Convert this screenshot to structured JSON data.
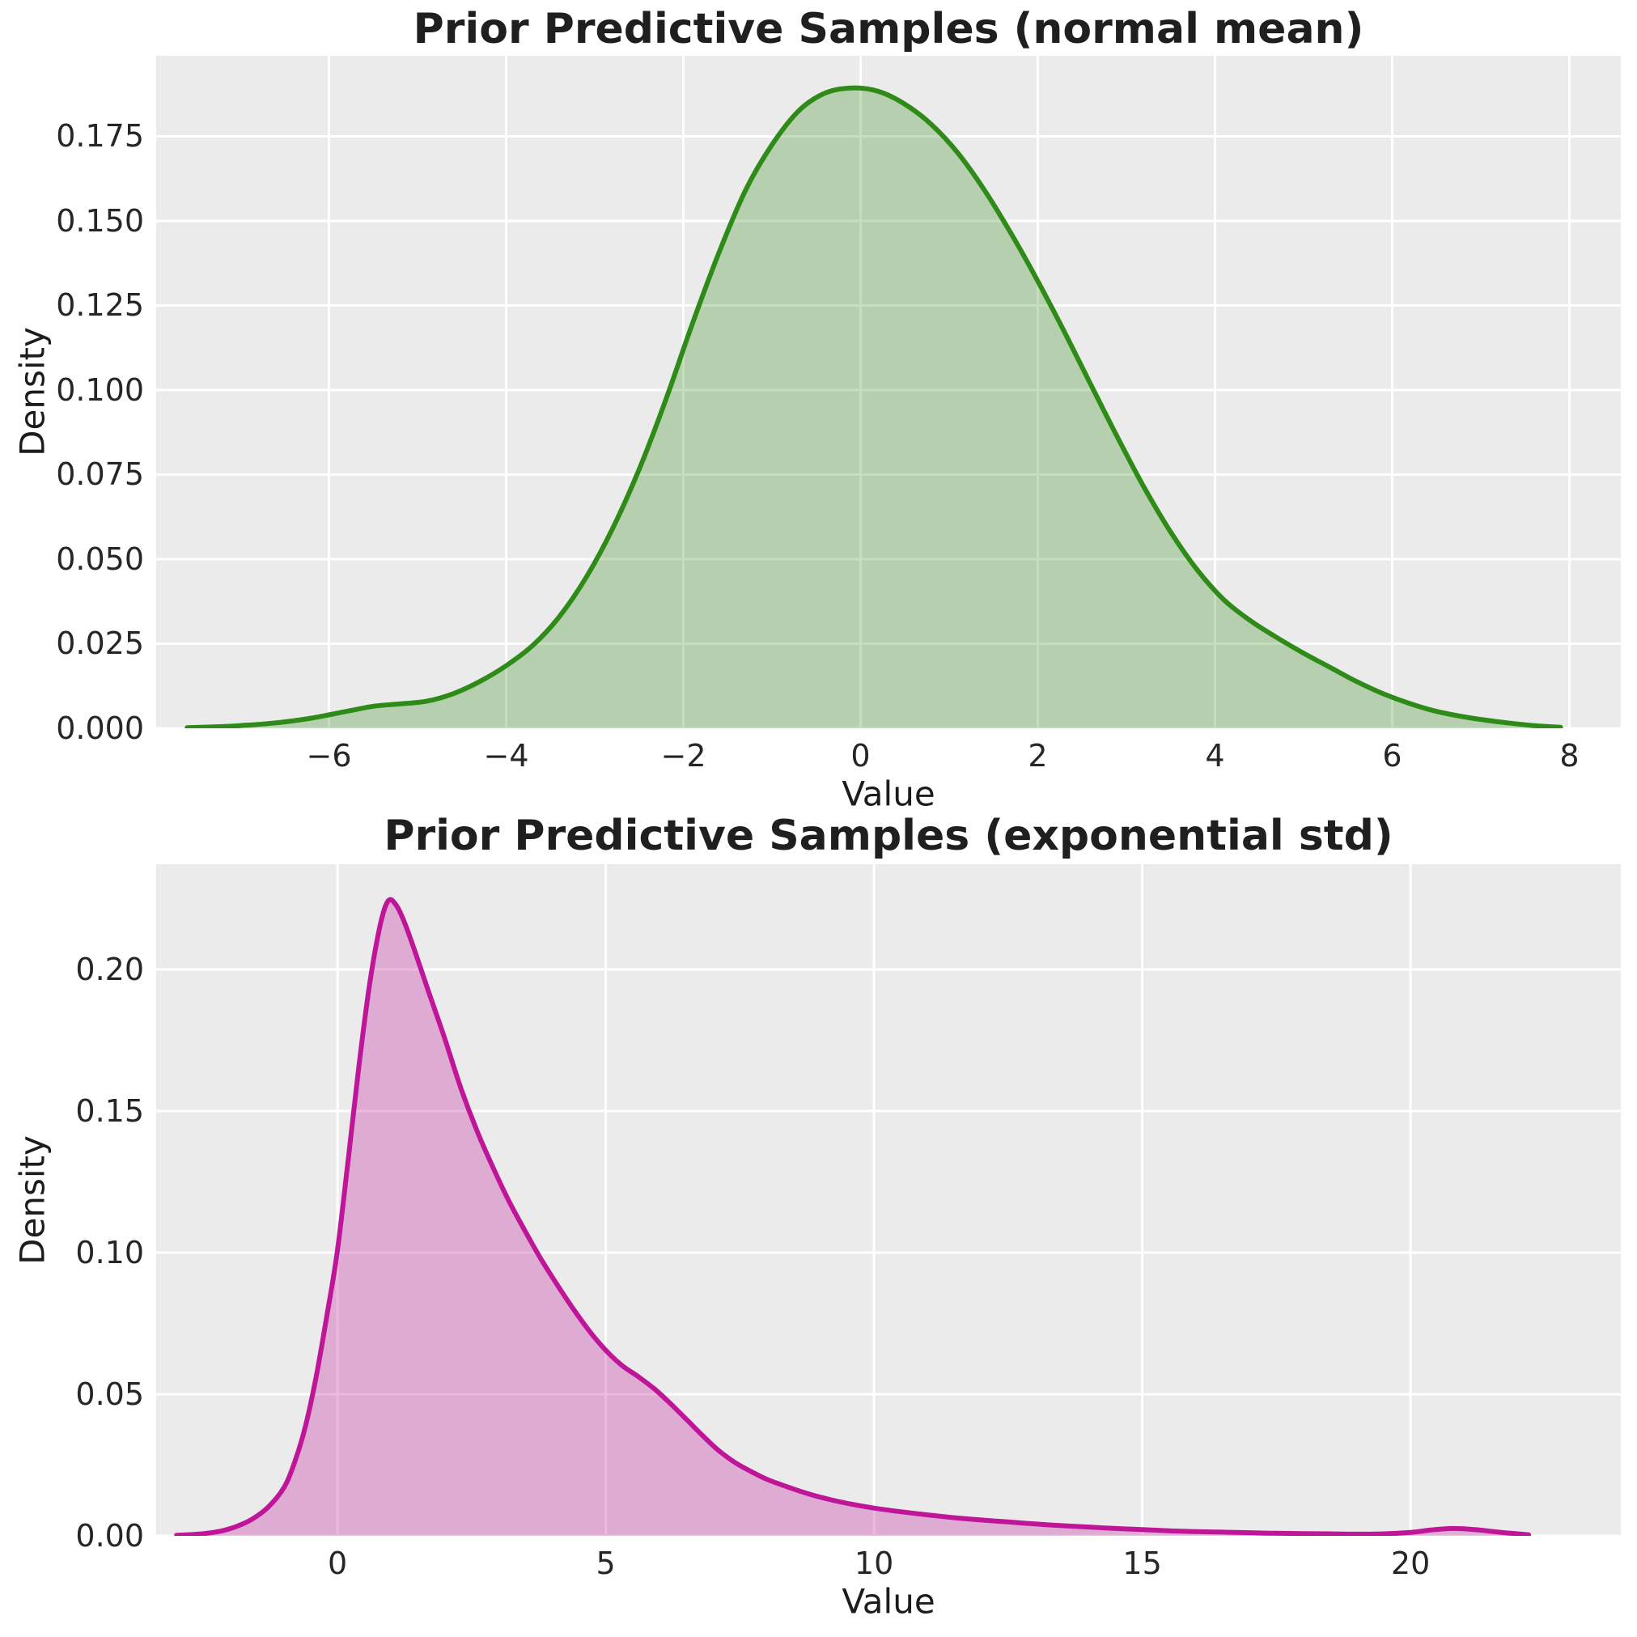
{
  "figure": {
    "background": "#ffffff",
    "axes_background": "#ebebeb",
    "grid_color": "#ffffff"
  },
  "chart_data": [
    {
      "type": "area",
      "title": "Prior Predictive Samples (normal mean)",
      "xlabel": "Value",
      "ylabel": "Density",
      "line_color": "#2e8b17",
      "fill_color": "rgba(46,139,23,0.28)",
      "xlim": [
        -7.95,
        8.58
      ],
      "ylim": [
        0,
        0.1988
      ],
      "grid": true,
      "xticks": [
        {
          "v": -6,
          "label": "−6"
        },
        {
          "v": -4,
          "label": "−4"
        },
        {
          "v": -2,
          "label": "−2"
        },
        {
          "v": 0,
          "label": "0"
        },
        {
          "v": 2,
          "label": "2"
        },
        {
          "v": 4,
          "label": "4"
        },
        {
          "v": 6,
          "label": "6"
        },
        {
          "v": 8,
          "label": "8"
        }
      ],
      "yticks": [
        {
          "v": 0.0,
          "label": "0.000"
        },
        {
          "v": 0.025,
          "label": "0.025"
        },
        {
          "v": 0.05,
          "label": "0.050"
        },
        {
          "v": 0.075,
          "label": "0.075"
        },
        {
          "v": 0.1,
          "label": "0.100"
        },
        {
          "v": 0.125,
          "label": "0.125"
        },
        {
          "v": 0.15,
          "label": "0.150"
        },
        {
          "v": 0.175,
          "label": "0.175"
        }
      ],
      "points": [
        [
          -7.6,
          0.0002
        ],
        [
          -7.3,
          0.0004
        ],
        [
          -7.0,
          0.0008
        ],
        [
          -6.6,
          0.0016
        ],
        [
          -6.2,
          0.003
        ],
        [
          -5.8,
          0.005
        ],
        [
          -5.5,
          0.0065
        ],
        [
          -5.2,
          0.0072
        ],
        [
          -4.9,
          0.008
        ],
        [
          -4.6,
          0.0102
        ],
        [
          -4.3,
          0.0138
        ],
        [
          -4.0,
          0.0185
        ],
        [
          -3.7,
          0.0245
        ],
        [
          -3.4,
          0.033
        ],
        [
          -3.1,
          0.0445
        ],
        [
          -2.8,
          0.059
        ],
        [
          -2.5,
          0.0765
        ],
        [
          -2.2,
          0.097
        ],
        [
          -1.9,
          0.1195
        ],
        [
          -1.6,
          0.1405
        ],
        [
          -1.3,
          0.159
        ],
        [
          -1.0,
          0.1725
        ],
        [
          -0.7,
          0.1825
        ],
        [
          -0.4,
          0.1878
        ],
        [
          -0.1,
          0.1893
        ],
        [
          0.2,
          0.1883
        ],
        [
          0.5,
          0.1845
        ],
        [
          0.8,
          0.1785
        ],
        [
          1.1,
          0.17
        ],
        [
          1.4,
          0.159
        ],
        [
          1.7,
          0.1462
        ],
        [
          2.0,
          0.1322
        ],
        [
          2.3,
          0.1172
        ],
        [
          2.6,
          0.1015
        ],
        [
          2.9,
          0.086
        ],
        [
          3.2,
          0.0712
        ],
        [
          3.5,
          0.058
        ],
        [
          3.8,
          0.0468
        ],
        [
          4.1,
          0.038
        ],
        [
          4.4,
          0.0318
        ],
        [
          4.7,
          0.0268
        ],
        [
          5.0,
          0.0222
        ],
        [
          5.3,
          0.018
        ],
        [
          5.6,
          0.0138
        ],
        [
          5.9,
          0.0102
        ],
        [
          6.2,
          0.0073
        ],
        [
          6.5,
          0.005
        ],
        [
          6.9,
          0.003
        ],
        [
          7.3,
          0.0016
        ],
        [
          7.6,
          0.0008
        ],
        [
          7.9,
          0.0003
        ]
      ]
    },
    {
      "type": "area",
      "title": "Prior Predictive Samples (exponential std)",
      "xlabel": "Value",
      "ylabel": "Density",
      "line_color": "#bf1699",
      "fill_color": "rgba(191,22,153,0.30)",
      "xlim": [
        -3.38,
        23.92
      ],
      "ylim": [
        0,
        0.23714
      ],
      "grid": true,
      "xticks": [
        {
          "v": 0,
          "label": "0"
        },
        {
          "v": 5,
          "label": "5"
        },
        {
          "v": 10,
          "label": "10"
        },
        {
          "v": 15,
          "label": "15"
        },
        {
          "v": 20,
          "label": "20"
        }
      ],
      "yticks": [
        {
          "v": 0.0,
          "label": "0.00"
        },
        {
          "v": 0.05,
          "label": "0.05"
        },
        {
          "v": 0.1,
          "label": "0.10"
        },
        {
          "v": 0.15,
          "label": "0.15"
        },
        {
          "v": 0.2,
          "label": "0.20"
        }
      ],
      "points": [
        [
          -3.0,
          0.0002
        ],
        [
          -2.6,
          0.0006
        ],
        [
          -2.2,
          0.0016
        ],
        [
          -1.9,
          0.0032
        ],
        [
          -1.6,
          0.0058
        ],
        [
          -1.3,
          0.01
        ],
        [
          -1.0,
          0.017
        ],
        [
          -0.8,
          0.026
        ],
        [
          -0.6,
          0.0385
        ],
        [
          -0.4,
          0.056
        ],
        [
          -0.2,
          0.0775
        ],
        [
          0.0,
          0.101
        ],
        [
          0.2,
          0.133
        ],
        [
          0.4,
          0.166
        ],
        [
          0.6,
          0.195
        ],
        [
          0.8,
          0.216
        ],
        [
          0.95,
          0.2243
        ],
        [
          1.1,
          0.2225
        ],
        [
          1.25,
          0.2165
        ],
        [
          1.45,
          0.206
        ],
        [
          1.7,
          0.192
        ],
        [
          2.0,
          0.1755
        ],
        [
          2.3,
          0.158
        ],
        [
          2.6,
          0.143
        ],
        [
          2.9,
          0.13
        ],
        [
          3.2,
          0.118
        ],
        [
          3.5,
          0.1075
        ],
        [
          3.8,
          0.0975
        ],
        [
          4.1,
          0.0885
        ],
        [
          4.4,
          0.08
        ],
        [
          4.7,
          0.0722
        ],
        [
          5.0,
          0.0655
        ],
        [
          5.3,
          0.0602
        ],
        [
          5.6,
          0.0563
        ],
        [
          5.9,
          0.052
        ],
        [
          6.2,
          0.0468
        ],
        [
          6.5,
          0.0412
        ],
        [
          6.8,
          0.0355
        ],
        [
          7.1,
          0.0302
        ],
        [
          7.4,
          0.026
        ],
        [
          7.7,
          0.0228
        ],
        [
          8.0,
          0.02
        ],
        [
          8.4,
          0.0172
        ],
        [
          8.8,
          0.0147
        ],
        [
          9.2,
          0.0127
        ],
        [
          9.6,
          0.0111
        ],
        [
          10.0,
          0.0098
        ],
        [
          10.5,
          0.0085
        ],
        [
          11.0,
          0.0074
        ],
        [
          11.5,
          0.0064
        ],
        [
          12.0,
          0.0056
        ],
        [
          12.5,
          0.0049
        ],
        [
          13.0,
          0.0042
        ],
        [
          13.5,
          0.0036
        ],
        [
          14.0,
          0.0031
        ],
        [
          14.5,
          0.0026
        ],
        [
          15.0,
          0.0022
        ],
        [
          15.5,
          0.0018
        ],
        [
          16.0,
          0.0015
        ],
        [
          16.5,
          0.0013
        ],
        [
          17.0,
          0.0011
        ],
        [
          17.5,
          0.0009
        ],
        [
          18.0,
          0.0008
        ],
        [
          18.5,
          0.0007
        ],
        [
          19.0,
          0.0006
        ],
        [
          19.5,
          0.0007
        ],
        [
          20.0,
          0.0012
        ],
        [
          20.4,
          0.0021
        ],
        [
          20.8,
          0.0026
        ],
        [
          21.2,
          0.0022
        ],
        [
          21.6,
          0.0014
        ],
        [
          22.0,
          0.0007
        ],
        [
          22.2,
          0.0004
        ]
      ]
    }
  ]
}
